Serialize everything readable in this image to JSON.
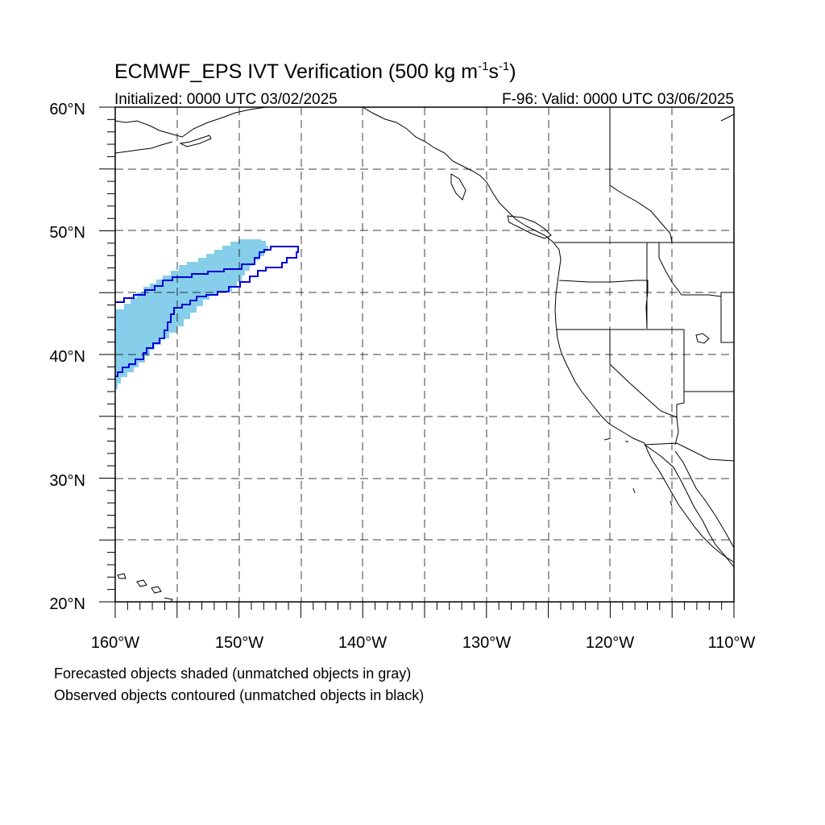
{
  "title": {
    "main": "ECMWF_EPS IVT Verification (500 kg m",
    "sup1": "-1",
    "mid": "s",
    "sup2": "-1",
    "end": ")"
  },
  "initialized": "Initialized: 0000 UTC 03/02/2025",
  "valid": "F-96: Valid: 0000 UTC 03/06/2025",
  "map": {
    "lon_range": [
      -160,
      -110
    ],
    "lat_range": [
      20,
      60
    ],
    "grid_interval_deg": 5,
    "lon_labels": [
      "160°W",
      "150°W",
      "140°W",
      "130°W",
      "120°W",
      "110°W"
    ],
    "lat_labels": [
      "20°N",
      "30°N",
      "40°N",
      "50°N",
      "60°N"
    ],
    "forecast_color": "#87ceeb",
    "observed_color": "#0000dd"
  },
  "legend": {
    "line1": "Forecasted objects shaded (unmatched objects in gray)",
    "line2": "Observed objects contoured (unmatched objects in black)"
  }
}
